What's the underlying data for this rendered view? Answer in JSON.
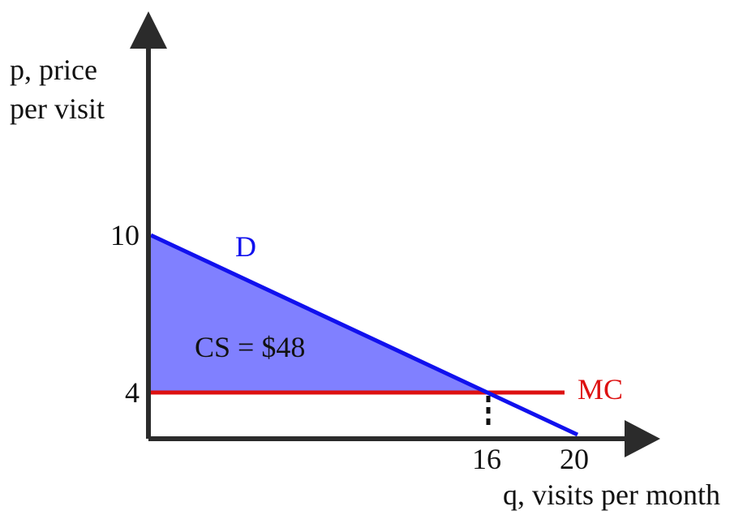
{
  "axes": {
    "y_label": [
      "p, price",
      "per visit"
    ],
    "x_label": "q, visits per month",
    "y_ticks": [
      "10",
      "4"
    ],
    "x_ticks": [
      "16",
      "20"
    ]
  },
  "curves": {
    "demand": "D",
    "marginal_cost": "MC"
  },
  "area": {
    "label": "CS = $48"
  }
}
